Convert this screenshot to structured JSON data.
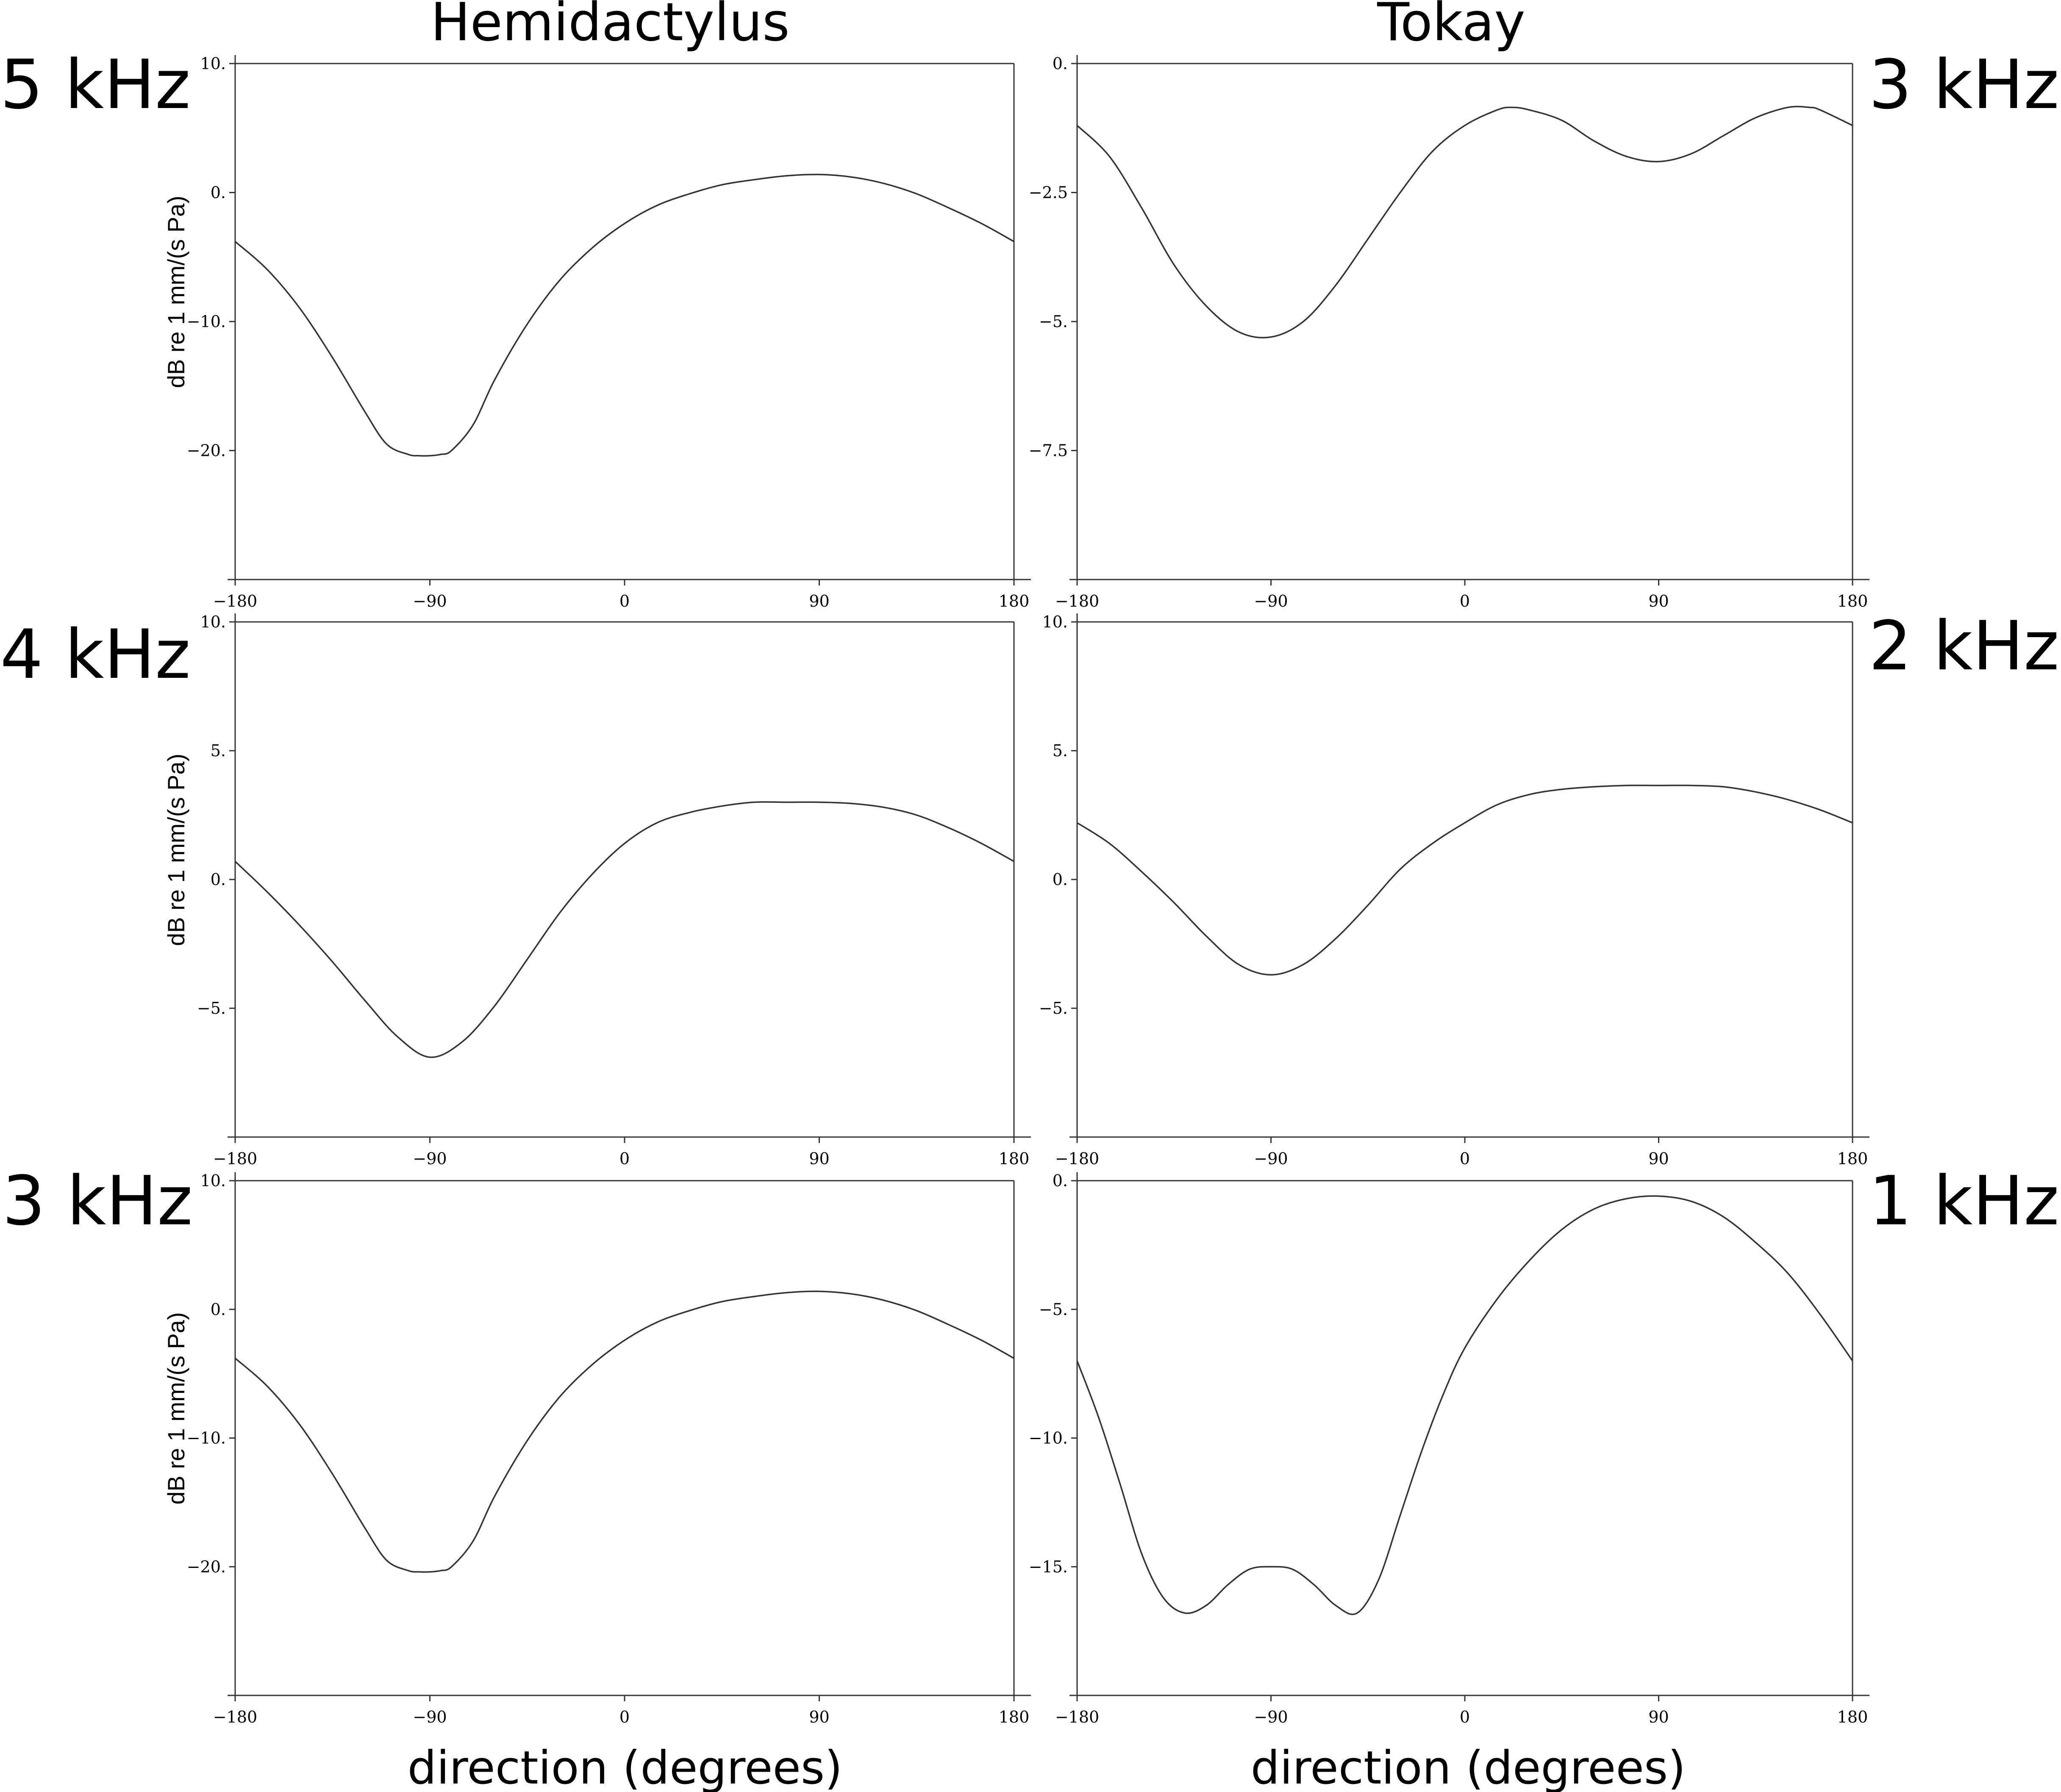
{
  "columns": [
    {
      "title": "Hemidactylus"
    },
    {
      "title": "Tokay"
    }
  ],
  "xlabel": "direction (degrees)",
  "ylabel": "dB re 1 mm/(s Pa)",
  "chart_data": [
    {
      "type": "line",
      "column": 0,
      "row": 0,
      "label": "5 kHz",
      "xlabel": "",
      "ylabel": "dB re 1 mm/(s Pa)",
      "xlim": [
        -180,
        180
      ],
      "ylim": [
        -30,
        10
      ],
      "xticks": [
        -180,
        -90,
        0,
        90,
        180
      ],
      "xtick_labels": [
        "−180",
        "−90",
        "0",
        "90",
        "180"
      ],
      "yticks": [
        10,
        0,
        -10,
        -20
      ],
      "ytick_labels": [
        "10.",
        "0.",
        "−10.",
        "−20."
      ],
      "series": [
        {
          "x": [
            -180,
            -165,
            -150,
            -135,
            -120,
            -110,
            -100,
            -95,
            -90,
            -85,
            -80,
            -70,
            -60,
            -45,
            -30,
            -15,
            0,
            15,
            30,
            45,
            60,
            75,
            90,
            105,
            120,
            135,
            150,
            165,
            180
          ],
          "y": [
            -3.8,
            -6.0,
            -9.0,
            -12.8,
            -17.0,
            -19.5,
            -20.3,
            -20.4,
            -20.4,
            -20.3,
            -20.0,
            -18.0,
            -14.5,
            -10.2,
            -6.8,
            -4.3,
            -2.4,
            -1.0,
            -0.1,
            0.6,
            1.0,
            1.3,
            1.4,
            1.2,
            0.7,
            -0.1,
            -1.2,
            -2.4,
            -3.8
          ]
        }
      ]
    },
    {
      "type": "line",
      "column": 0,
      "row": 1,
      "label": "4 kHz",
      "xlabel": "",
      "ylabel": "dB re 1 mm/(s Pa)",
      "xlim": [
        -180,
        180
      ],
      "ylim": [
        -10,
        10
      ],
      "xticks": [
        -180,
        -90,
        0,
        90,
        180
      ],
      "xtick_labels": [
        "−180",
        "−90",
        "0",
        "90",
        "180"
      ],
      "yticks": [
        10,
        5,
        0,
        -5
      ],
      "ytick_labels": [
        "10.",
        "5.",
        "0.",
        "−5."
      ],
      "series": [
        {
          "x": [
            -180,
            -165,
            -150,
            -135,
            -120,
            -105,
            -90,
            -75,
            -60,
            -45,
            -30,
            -15,
            0,
            15,
            30,
            45,
            60,
            75,
            90,
            105,
            120,
            135,
            150,
            165,
            180
          ],
          "y": [
            0.7,
            -0.5,
            -1.8,
            -3.2,
            -4.7,
            -6.1,
            -6.9,
            -6.3,
            -4.9,
            -3.1,
            -1.3,
            0.2,
            1.4,
            2.2,
            2.6,
            2.85,
            3.0,
            3.0,
            3.0,
            2.95,
            2.8,
            2.5,
            2.0,
            1.4,
            0.7
          ]
        }
      ]
    },
    {
      "type": "line",
      "column": 0,
      "row": 2,
      "label": "3 kHz",
      "xlabel": "direction (degrees)",
      "ylabel": "dB re 1 mm/(s Pa)",
      "xlim": [
        -180,
        180
      ],
      "ylim": [
        -30,
        10
      ],
      "xticks": [
        -180,
        -90,
        0,
        90,
        180
      ],
      "xtick_labels": [
        "−180",
        "−90",
        "0",
        "90",
        "180"
      ],
      "yticks": [
        10,
        0,
        -10,
        -20
      ],
      "ytick_labels": [
        "10.",
        "0.",
        "−10.",
        "−20."
      ],
      "series": [
        {
          "x": [
            -180,
            -165,
            -150,
            -135,
            -120,
            -110,
            -100,
            -95,
            -90,
            -85,
            -80,
            -70,
            -60,
            -45,
            -30,
            -15,
            0,
            15,
            30,
            45,
            60,
            75,
            90,
            105,
            120,
            135,
            150,
            165,
            180
          ],
          "y": [
            -3.8,
            -6.0,
            -9.0,
            -12.8,
            -17.0,
            -19.5,
            -20.3,
            -20.4,
            -20.4,
            -20.3,
            -20.0,
            -18.0,
            -14.5,
            -10.2,
            -6.8,
            -4.3,
            -2.4,
            -1.0,
            -0.1,
            0.6,
            1.0,
            1.3,
            1.4,
            1.2,
            0.7,
            -0.1,
            -1.2,
            -2.4,
            -3.8
          ]
        }
      ]
    },
    {
      "type": "line",
      "column": 1,
      "row": 0,
      "label": "3 kHz",
      "xlabel": "",
      "ylabel": "",
      "xlim": [
        -180,
        180
      ],
      "ylim": [
        -10,
        0
      ],
      "xticks": [
        -180,
        -90,
        0,
        90,
        180
      ],
      "xtick_labels": [
        "−180",
        "−90",
        "0",
        "90",
        "180"
      ],
      "yticks": [
        0,
        -2.5,
        -5,
        -7.5
      ],
      "ytick_labels": [
        "0.",
        "−2.5",
        "−5.",
        "−7.5"
      ],
      "series": [
        {
          "x": [
            -180,
            -165,
            -150,
            -135,
            -120,
            -105,
            -90,
            -75,
            -60,
            -45,
            -30,
            -15,
            0,
            15,
            22,
            30,
            45,
            60,
            75,
            90,
            105,
            120,
            135,
            150,
            160,
            165,
            180
          ],
          "y": [
            -1.2,
            -1.8,
            -2.8,
            -3.9,
            -4.7,
            -5.2,
            -5.3,
            -5.0,
            -4.3,
            -3.4,
            -2.5,
            -1.7,
            -1.2,
            -0.9,
            -0.85,
            -0.9,
            -1.1,
            -1.5,
            -1.8,
            -1.9,
            -1.75,
            -1.4,
            -1.05,
            -0.85,
            -0.85,
            -0.9,
            -1.2
          ]
        }
      ]
    },
    {
      "type": "line",
      "column": 1,
      "row": 1,
      "label": "2 kHz",
      "xlabel": "",
      "ylabel": "",
      "xlim": [
        -180,
        180
      ],
      "ylim": [
        -10,
        10
      ],
      "xticks": [
        -180,
        -90,
        0,
        90,
        180
      ],
      "xtick_labels": [
        "−180",
        "−90",
        "0",
        "90",
        "180"
      ],
      "yticks": [
        10,
        5,
        0,
        -5
      ],
      "ytick_labels": [
        "10.",
        "5.",
        "0.",
        "−5."
      ],
      "series": [
        {
          "x": [
            -180,
            -165,
            -150,
            -135,
            -120,
            -105,
            -90,
            -75,
            -60,
            -45,
            -30,
            -15,
            0,
            15,
            30,
            45,
            60,
            75,
            90,
            105,
            120,
            135,
            150,
            165,
            180
          ],
          "y": [
            2.2,
            1.4,
            0.3,
            -0.9,
            -2.2,
            -3.3,
            -3.7,
            -3.3,
            -2.3,
            -1.0,
            0.4,
            1.4,
            2.2,
            2.9,
            3.3,
            3.5,
            3.6,
            3.65,
            3.65,
            3.65,
            3.6,
            3.4,
            3.1,
            2.7,
            2.2
          ]
        }
      ]
    },
    {
      "type": "line",
      "column": 1,
      "row": 2,
      "label": "1 kHz",
      "xlabel": "direction (degrees)",
      "ylabel": "",
      "xlim": [
        -180,
        180
      ],
      "ylim": [
        -20,
        0
      ],
      "xticks": [
        -180,
        -90,
        0,
        90,
        180
      ],
      "xtick_labels": [
        "−180",
        "−90",
        "0",
        "90",
        "180"
      ],
      "yticks": [
        0,
        -5,
        -10,
        -15
      ],
      "ytick_labels": [
        "0.",
        "−5.",
        "−10.",
        "−15."
      ],
      "series": [
        {
          "x": [
            -180,
            -170,
            -160,
            -150,
            -140,
            -130,
            -120,
            -110,
            -100,
            -90,
            -80,
            -70,
            -60,
            -50,
            -40,
            -30,
            -20,
            -10,
            0,
            15,
            30,
            45,
            60,
            75,
            90,
            105,
            120,
            135,
            150,
            165,
            180
          ],
          "y": [
            -7.0,
            -9.2,
            -11.8,
            -14.5,
            -16.2,
            -16.8,
            -16.5,
            -15.7,
            -15.1,
            -15.0,
            -15.1,
            -15.7,
            -16.5,
            -16.8,
            -15.5,
            -13.0,
            -10.5,
            -8.3,
            -6.5,
            -4.6,
            -3.1,
            -1.9,
            -1.1,
            -0.7,
            -0.6,
            -0.8,
            -1.4,
            -2.4,
            -3.6,
            -5.2,
            -7.0
          ]
        }
      ]
    }
  ]
}
